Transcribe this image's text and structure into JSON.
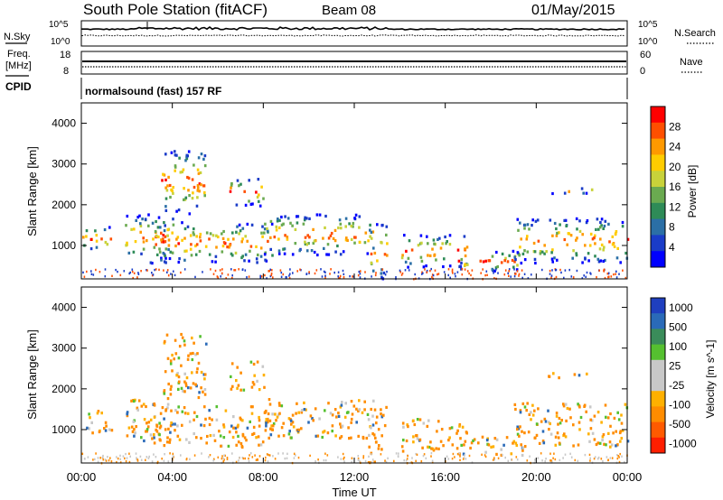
{
  "header": {
    "station": "South Pole Station (fitACF)",
    "beam": "Beam 08",
    "date": "01/May/2015"
  },
  "side_labels": {
    "nsky": "N.Sky",
    "freq_line1": "Freq.",
    "freq_line2": "[MHz]",
    "cpid": "CPID",
    "nsearch": "N.Search",
    "nave": "Nave"
  },
  "cpid_name": "normalsound (fast) 157 RF",
  "chart_data": [
    {
      "type": "line",
      "name": "noise-panel",
      "left_ticks": [
        "10^5",
        "10^0"
      ],
      "right_ticks": [
        "10^5",
        "10^0"
      ],
      "series_left": "N.Sky",
      "series_right": "N.Search"
    },
    {
      "type": "line",
      "name": "frequency-panel",
      "left_ticks": [
        "18",
        "8"
      ],
      "right_ticks": [
        "60",
        "0"
      ],
      "ylim_left": [
        8,
        18
      ],
      "ylim_right": [
        0,
        60
      ],
      "series_left": "Freq. [MHz]",
      "series_right": "Nave"
    },
    {
      "type": "heatmap",
      "name": "power-panel",
      "ylabel": "Slant Range [km]",
      "ylim": [
        180,
        4500
      ],
      "y_ticks": [
        1000,
        2000,
        3000,
        4000
      ],
      "colorbar_label": "Power [dB]",
      "colorbar_ticks": [
        "28",
        "24",
        "20",
        "16",
        "12",
        "8",
        "4"
      ],
      "colorbar_colors": [
        "#ff0000",
        "#ff4f00",
        "#ff9900",
        "#ffcc00",
        "#c8d23a",
        "#6aaa50",
        "#2e8b57",
        "#2b6fa6",
        "#1a3cc8",
        "#0000ff"
      ]
    },
    {
      "type": "heatmap",
      "name": "velocity-panel",
      "ylabel": "Slant Range [km]",
      "ylim": [
        180,
        4500
      ],
      "y_ticks": [
        1000,
        2000,
        3000,
        4000
      ],
      "colorbar_label": "Velocity [m s^-1]",
      "colorbar_ticks": [
        "1000",
        "500",
        "100",
        "25",
        "-25",
        "-100",
        "-500",
        "-1000"
      ],
      "colorbar_colors": [
        "#1f3fbf",
        "#2a6ab8",
        "#3a8c5a",
        "#55c030",
        "#c8c8c8",
        "#c8c8c8",
        "#ffb000",
        "#ff8c00",
        "#ff5a00",
        "#ff1e00"
      ]
    }
  ],
  "x_axis": {
    "label": "Time UT",
    "ticks": [
      "00:00",
      "04:00",
      "08:00",
      "12:00",
      "16:00",
      "20:00",
      "00:00"
    ],
    "xlim_hours": [
      0,
      24
    ]
  },
  "echo_bands": [
    {
      "t0": 0.0,
      "t1": 1.3,
      "r0": 900,
      "r1": 1500
    },
    {
      "t0": 1.9,
      "t1": 4.0,
      "r0": 700,
      "r1": 1800
    },
    {
      "t0": 3.0,
      "t1": 8.5,
      "r0": 600,
      "r1": 1600
    },
    {
      "t0": 3.5,
      "t1": 5.5,
      "r0": 1800,
      "r1": 3400
    },
    {
      "t0": 6.5,
      "t1": 8.0,
      "r0": 2000,
      "r1": 2700
    },
    {
      "t0": 8.0,
      "t1": 12.8,
      "r0": 800,
      "r1": 1800
    },
    {
      "t0": 12.6,
      "t1": 13.4,
      "r0": 200,
      "r1": 1600
    },
    {
      "t0": 14.0,
      "t1": 17.0,
      "r0": 500,
      "r1": 1300
    },
    {
      "t0": 16.5,
      "t1": 19.5,
      "r0": 400,
      "r1": 900
    },
    {
      "t0": 19.0,
      "t1": 24.0,
      "r0": 600,
      "r1": 1700
    },
    {
      "t0": 20.5,
      "t1": 22.5,
      "r0": 2300,
      "r1": 2450
    }
  ]
}
